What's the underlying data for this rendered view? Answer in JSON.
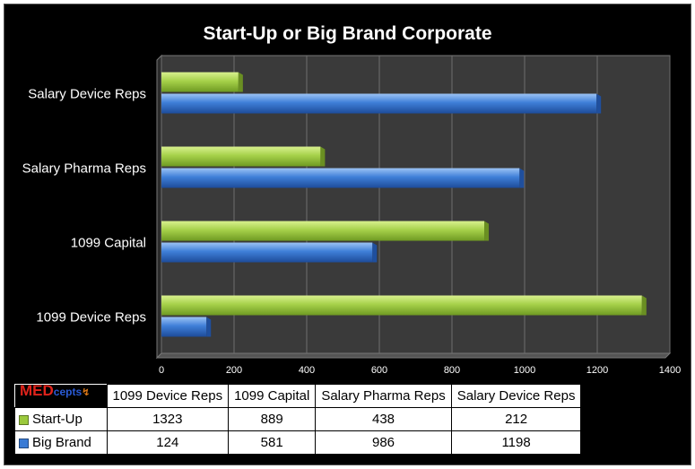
{
  "chart_data": {
    "type": "bar",
    "orientation": "horizontal",
    "title": "Start-Up or Big Brand Corporate",
    "categories": [
      "1099 Device Reps",
      "1099 Capital",
      "Salary Pharma Reps",
      "Salary Device Reps"
    ],
    "series": [
      {
        "name": "Start-Up",
        "values": [
          1323,
          889,
          438,
          212
        ],
        "color": "#9bc93c"
      },
      {
        "name": "Big Brand",
        "values": [
          124,
          581,
          986,
          1198
        ],
        "color": "#3a7bd5"
      }
    ],
    "xlim": [
      0,
      1400
    ],
    "xticks": [
      "0",
      "200",
      "400",
      "600",
      "800",
      "1000",
      "1200",
      "1400"
    ],
    "grid": true,
    "legend": "data-table"
  },
  "logo": {
    "text_main": "MED",
    "text_sub": "cepts"
  },
  "colors": {
    "background": "#000000",
    "plot_area": "#3a3a3a",
    "grid": "#6e6e6e"
  }
}
